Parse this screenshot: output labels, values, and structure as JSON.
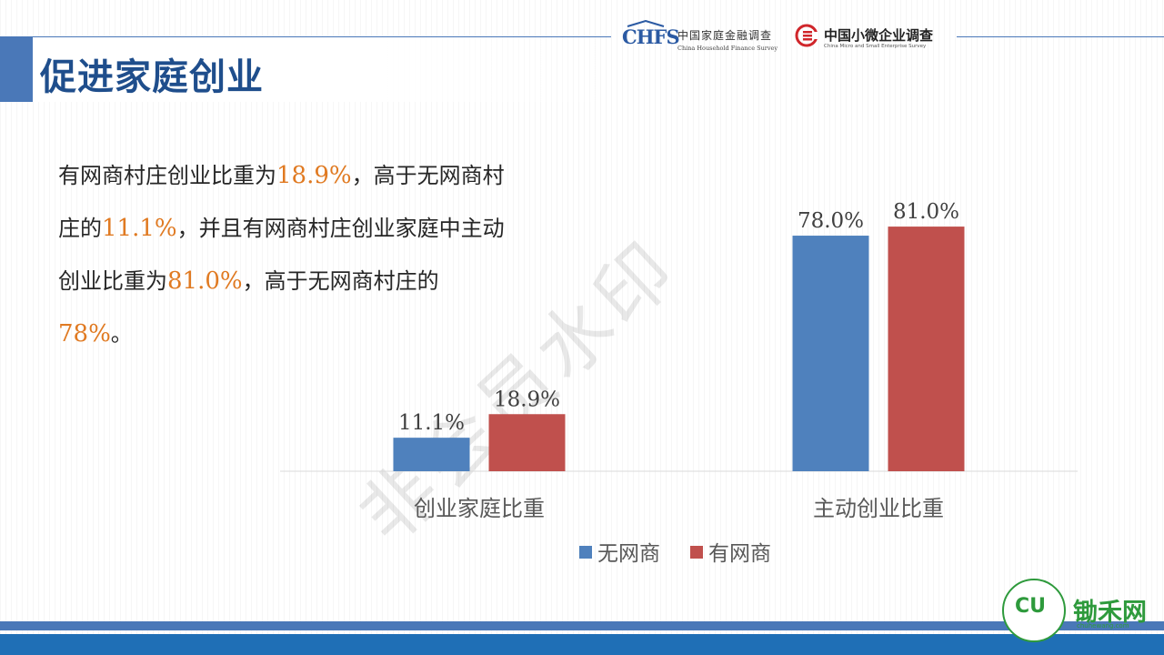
{
  "slide": {
    "title": "促进家庭创业"
  },
  "logos": {
    "chfs": {
      "mark": "CHFS",
      "cn": "中国家庭金融调查",
      "en": "China Household Finance Survey"
    },
    "cmes": {
      "cn": "中国小微企业调查",
      "en": "China Micro and Small Enterprise Survey"
    },
    "chuhe": {
      "name": "锄禾网",
      "url": "chuhewang.com"
    }
  },
  "body": {
    "p1": "有网商村庄创业比重为",
    "v1": "18.9%",
    "p2": "，高于无网商村庄的",
    "v2": "11.1%",
    "p3": "，并且有网商村庄创业家庭中主动创业比重为",
    "v3": "81.0%",
    "p4": "，高于无网商村庄的",
    "v4": "78%",
    "p5": "。"
  },
  "watermark": "非会员水印",
  "colors": {
    "series_no": "#4f81bd",
    "series_yes": "#c0504d",
    "accent_text": "#e07a22",
    "title_blue": "#1f4e8c"
  },
  "chart_data": {
    "type": "bar",
    "categories": [
      "创业家庭比重",
      "主动创业比重"
    ],
    "series": [
      {
        "name": "无网商",
        "values": [
          11.1,
          78.0
        ],
        "labels": [
          "11.1%",
          "78.0%"
        ]
      },
      {
        "name": "有网商",
        "values": [
          18.9,
          81.0
        ],
        "labels": [
          "18.9%",
          "81.0%"
        ]
      }
    ],
    "title": "",
    "xlabel": "",
    "ylabel": "",
    "ylim": [
      0,
      100
    ],
    "grid": false,
    "legend_position": "bottom"
  }
}
